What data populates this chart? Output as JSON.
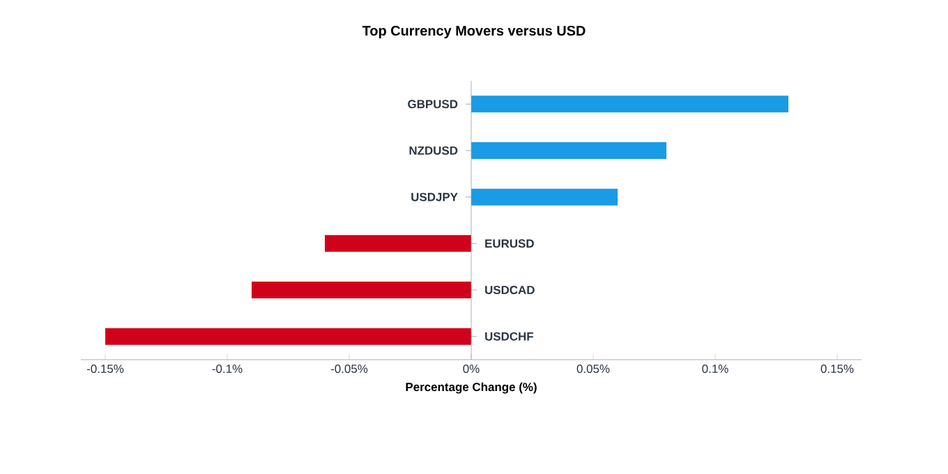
{
  "chart_data": {
    "type": "bar",
    "orientation": "horizontal",
    "title": "Top Currency Movers versus USD",
    "xlabel": "Percentage Change (%)",
    "categories": [
      "GBPUSD",
      "NZDUSD",
      "USDJPY",
      "EURUSD",
      "USDCAD",
      "USDCHF"
    ],
    "values": [
      0.13,
      0.08,
      0.06,
      -0.06,
      -0.09,
      -0.15
    ],
    "colors": [
      "#1a9be6",
      "#1a9be6",
      "#1a9be6",
      "#d0021b",
      "#d0021b",
      "#d0021b"
    ],
    "xlim": [
      -0.16,
      0.16
    ],
    "xticks": [
      {
        "value": -0.15,
        "label": "-0.15%"
      },
      {
        "value": -0.1,
        "label": "-0.1%"
      },
      {
        "value": -0.05,
        "label": "-0.05%"
      },
      {
        "value": 0,
        "label": "0%"
      },
      {
        "value": 0.05,
        "label": "0.05%"
      },
      {
        "value": 0.1,
        "label": "0.1%"
      },
      {
        "value": 0.15,
        "label": "0.15%"
      }
    ],
    "grid": false
  }
}
